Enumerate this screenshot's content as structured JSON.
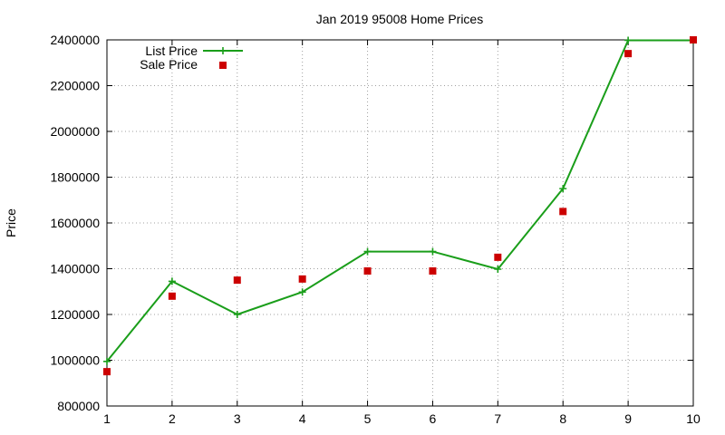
{
  "chart_data": {
    "type": "line",
    "title": "Jan 2019 95008 Home Prices",
    "xlabel": "",
    "ylabel": "Price",
    "xlim": [
      1,
      10
    ],
    "ylim": [
      800000,
      2400000
    ],
    "x_ticks": [
      "1",
      "2",
      "3",
      "4",
      "5",
      "6",
      "7",
      "8",
      "9",
      "10"
    ],
    "y_ticks": [
      "800000",
      "1000000",
      "1200000",
      "1400000",
      "1600000",
      "1800000",
      "2000000",
      "2200000",
      "2400000"
    ],
    "grid": true,
    "legend_position": "top-left",
    "series": [
      {
        "name": "List Price",
        "style": "line with plus markers",
        "color": "#1a9e1a",
        "x": [
          1,
          2,
          3,
          4,
          5,
          6,
          7,
          8,
          9,
          10
        ],
        "y": [
          995000,
          1345000,
          1200000,
          1298000,
          1475000,
          1475000,
          1398000,
          1750000,
          2398000,
          2398000
        ]
      },
      {
        "name": "Sale Price",
        "style": "square markers",
        "color": "#cc0000",
        "x": [
          1,
          2,
          3,
          4,
          5,
          6,
          7,
          8,
          9,
          10
        ],
        "y": [
          950000,
          1280000,
          1350000,
          1355000,
          1390000,
          1390000,
          1450000,
          1650000,
          2340000,
          2400000
        ]
      }
    ]
  }
}
